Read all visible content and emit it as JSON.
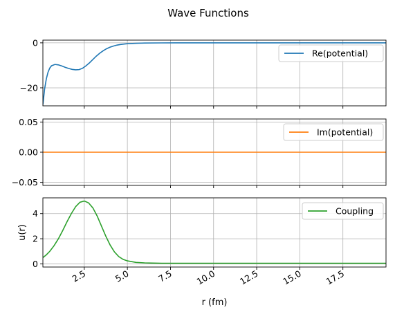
{
  "chart_data": {
    "title": "Wave Functions",
    "x_label": "r (fm)",
    "x_ticks": [
      2.5,
      5.0,
      7.5,
      10.0,
      12.5,
      15.0,
      17.5
    ],
    "x_tick_labels": [
      "2.5",
      "5.0",
      "7.5",
      "10.0",
      "12.5",
      "15.0",
      "17.5"
    ],
    "x_range": [
      0.1,
      20.0
    ],
    "grid": true,
    "shared_x": true,
    "panels": [
      {
        "type": "line",
        "ylabel": "",
        "ylim": [
          -28.0,
          1.2
        ],
        "y_ticks": [
          0,
          -20
        ],
        "y_tick_labels": [
          "0",
          "−20"
        ],
        "legend_position": "upper-right",
        "series": [
          {
            "name": "Re(potential)",
            "color": "#1f77b4",
            "x": [
              0.1,
              0.2,
              0.3,
              0.4,
              0.5,
              0.6,
              0.8,
              1.0,
              1.2,
              1.4,
              1.6,
              1.8,
              2.0,
              2.2,
              2.4,
              2.6,
              2.8,
              3.0,
              3.2,
              3.4,
              3.6,
              3.8,
              4.0,
              4.2,
              4.4,
              4.6,
              4.8,
              5.0,
              5.5,
              6.0,
              7.0,
              8.0,
              10.0,
              12.0,
              15.0,
              18.0,
              20.0
            ],
            "y": [
              -27.5,
              -20.5,
              -16.0,
              -13.0,
              -11.2,
              -10.2,
              -9.6,
              -9.8,
              -10.3,
              -10.9,
              -11.4,
              -11.8,
              -12.0,
              -11.9,
              -11.3,
              -10.2,
              -8.9,
              -7.4,
              -5.9,
              -4.6,
              -3.5,
              -2.6,
              -1.9,
              -1.4,
              -1.0,
              -0.75,
              -0.55,
              -0.4,
              -0.2,
              -0.1,
              -0.03,
              -0.01,
              0.0,
              0.0,
              0.0,
              0.0,
              0.0
            ]
          }
        ]
      },
      {
        "type": "line",
        "ylabel": "",
        "ylim": [
          -0.055,
          0.055
        ],
        "y_ticks": [
          0.05,
          0.0,
          -0.05
        ],
        "y_tick_labels": [
          "0.05",
          "0.00",
          "−0.05"
        ],
        "legend_position": "upper-right",
        "series": [
          {
            "name": "Im(potential)",
            "color": "#ff7f0e",
            "x": [
              0.1,
              20.0
            ],
            "y": [
              0.0,
              0.0
            ]
          }
        ]
      },
      {
        "type": "line",
        "ylabel": "u(r)",
        "ylim": [
          -0.25,
          5.25
        ],
        "y_ticks": [
          0,
          2,
          4
        ],
        "y_tick_labels": [
          "0",
          "2",
          "4"
        ],
        "legend_position": "upper-right",
        "series": [
          {
            "name": "Coupling",
            "color": "#2ca02c",
            "x": [
              0.1,
              0.3,
              0.5,
              0.75,
              1.0,
              1.25,
              1.5,
              1.75,
              2.0,
              2.25,
              2.5,
              2.75,
              3.0,
              3.25,
              3.5,
              3.75,
              4.0,
              4.25,
              4.5,
              4.75,
              5.0,
              5.5,
              6.0,
              6.5,
              7.0,
              8.0,
              10.0,
              15.0,
              20.0
            ],
            "y": [
              0.5,
              0.72,
              1.0,
              1.45,
              2.0,
              2.65,
              3.35,
              4.0,
              4.55,
              4.9,
              5.0,
              4.85,
              4.45,
              3.8,
              3.0,
              2.2,
              1.5,
              0.95,
              0.58,
              0.36,
              0.24,
              0.12,
              0.08,
              0.06,
              0.05,
              0.05,
              0.05,
              0.05,
              0.05
            ]
          }
        ]
      }
    ]
  }
}
